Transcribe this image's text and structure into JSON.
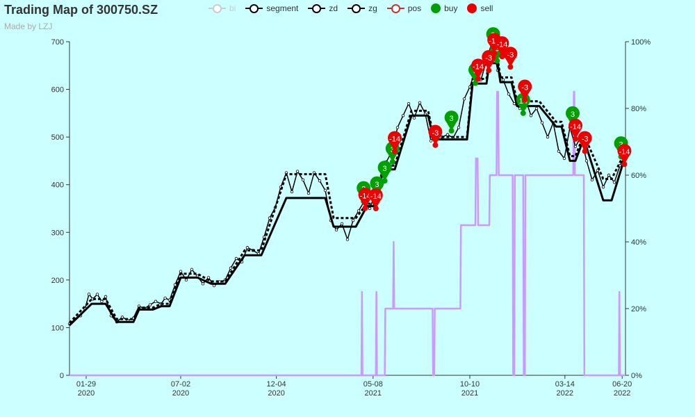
{
  "title": "Trading Map of 300750.SZ",
  "subtitle": "Made by LZJ",
  "legend": [
    {
      "label": "bi",
      "color": "#cccccc",
      "kind": "line",
      "disabled": true
    },
    {
      "label": "segment",
      "color": "#000000",
      "kind": "line",
      "disabled": false
    },
    {
      "label": "zd",
      "color": "#000000",
      "kind": "line",
      "disabled": false
    },
    {
      "label": "zg",
      "color": "#000000",
      "kind": "line",
      "disabled": false
    },
    {
      "label": "pos",
      "color": "#c23531",
      "kind": "line",
      "disabled": false
    },
    {
      "label": "buy",
      "color": "#00a000",
      "kind": "pin",
      "disabled": false
    },
    {
      "label": "sell",
      "color": "#ee0000",
      "kind": "pin",
      "disabled": false
    }
  ],
  "chart_data": {
    "type": "line",
    "title": "Trading Map of 300750.SZ",
    "subtitle": "Made by LZJ",
    "x_ticks": [
      {
        "t": 0.03,
        "label": "01-29",
        "year": "2020"
      },
      {
        "t": 0.2,
        "label": "07-02",
        "year": "2020"
      },
      {
        "t": 0.372,
        "label": "12-04",
        "year": "2020"
      },
      {
        "t": 0.546,
        "label": "05-08",
        "year": "2021"
      },
      {
        "t": 0.72,
        "label": "10-10",
        "year": "2021"
      },
      {
        "t": 0.891,
        "label": "03-14",
        "year": "2022"
      },
      {
        "t": 0.994,
        "label": "06-20",
        "year": "2022"
      }
    ],
    "y_left": {
      "min": 0,
      "max": 700,
      "ticks": [
        0,
        100,
        200,
        300,
        400,
        500,
        600,
        700
      ]
    },
    "y_right": {
      "min": 0,
      "max": 1,
      "ticks": [
        "0%",
        "20%",
        "40%",
        "60%",
        "80%",
        "100%"
      ]
    },
    "grid": false,
    "legend_position": "top",
    "series": [
      {
        "name": "segment",
        "color": "#000000",
        "width": 3,
        "dash": "",
        "points": [
          [
            0.0,
            105
          ],
          [
            0.04,
            150
          ],
          [
            0.065,
            150
          ],
          [
            0.085,
            112
          ],
          [
            0.115,
            112
          ],
          [
            0.125,
            138
          ],
          [
            0.15,
            138
          ],
          [
            0.165,
            145
          ],
          [
            0.18,
            145
          ],
          [
            0.2,
            205
          ],
          [
            0.23,
            205
          ],
          [
            0.255,
            192
          ],
          [
            0.28,
            192
          ],
          [
            0.315,
            252
          ],
          [
            0.345,
            252
          ],
          [
            0.39,
            372
          ],
          [
            0.46,
            372
          ],
          [
            0.475,
            312
          ],
          [
            0.515,
            312
          ],
          [
            0.535,
            355
          ],
          [
            0.548,
            355
          ],
          [
            0.565,
            432
          ],
          [
            0.585,
            432
          ],
          [
            0.615,
            545
          ],
          [
            0.645,
            545
          ],
          [
            0.655,
            495
          ],
          [
            0.715,
            495
          ],
          [
            0.725,
            612
          ],
          [
            0.75,
            612
          ],
          [
            0.755,
            655
          ],
          [
            0.77,
            655
          ],
          [
            0.775,
            615
          ],
          [
            0.795,
            615
          ],
          [
            0.805,
            565
          ],
          [
            0.845,
            565
          ],
          [
            0.875,
            522
          ],
          [
            0.885,
            522
          ],
          [
            0.9,
            450
          ],
          [
            0.91,
            450
          ],
          [
            0.925,
            497
          ],
          [
            0.96,
            367
          ],
          [
            0.975,
            367
          ],
          [
            1.0,
            462
          ]
        ]
      },
      {
        "name": "zd",
        "color": "#000000",
        "width": 3,
        "dash": "4,3",
        "points": [
          [
            0.0,
            110
          ],
          [
            0.04,
            160
          ],
          [
            0.065,
            160
          ],
          [
            0.085,
            118
          ],
          [
            0.115,
            118
          ],
          [
            0.125,
            142
          ],
          [
            0.15,
            142
          ],
          [
            0.165,
            150
          ],
          [
            0.18,
            150
          ],
          [
            0.2,
            213
          ],
          [
            0.23,
            213
          ],
          [
            0.255,
            197
          ],
          [
            0.28,
            197
          ],
          [
            0.315,
            262
          ],
          [
            0.345,
            262
          ],
          [
            0.39,
            422
          ],
          [
            0.46,
            422
          ],
          [
            0.475,
            330
          ],
          [
            0.515,
            330
          ],
          [
            0.535,
            360
          ],
          [
            0.548,
            360
          ],
          [
            0.565,
            440
          ],
          [
            0.585,
            440
          ],
          [
            0.615,
            555
          ],
          [
            0.645,
            555
          ],
          [
            0.655,
            500
          ],
          [
            0.715,
            500
          ],
          [
            0.725,
            622
          ],
          [
            0.75,
            622
          ],
          [
            0.755,
            665
          ],
          [
            0.77,
            665
          ],
          [
            0.775,
            625
          ],
          [
            0.795,
            625
          ],
          [
            0.805,
            575
          ],
          [
            0.845,
            575
          ],
          [
            0.875,
            532
          ],
          [
            0.885,
            532
          ],
          [
            0.9,
            460
          ],
          [
            0.91,
            460
          ],
          [
            0.925,
            505
          ],
          [
            0.96,
            412
          ],
          [
            0.975,
            412
          ],
          [
            1.0,
            470
          ]
        ]
      },
      {
        "name": "zg",
        "color": "#000000",
        "width": 1.5,
        "dash": "",
        "points": [
          [
            0.0,
            108
          ],
          [
            0.01,
            118
          ],
          [
            0.02,
            125
          ],
          [
            0.028,
            140
          ],
          [
            0.035,
            170
          ],
          [
            0.042,
            160
          ],
          [
            0.05,
            170
          ],
          [
            0.058,
            155
          ],
          [
            0.065,
            165
          ],
          [
            0.075,
            125
          ],
          [
            0.085,
            112
          ],
          [
            0.095,
            122
          ],
          [
            0.105,
            115
          ],
          [
            0.115,
            120
          ],
          [
            0.125,
            145
          ],
          [
            0.135,
            140
          ],
          [
            0.145,
            148
          ],
          [
            0.155,
            155
          ],
          [
            0.165,
            150
          ],
          [
            0.172,
            162
          ],
          [
            0.18,
            158
          ],
          [
            0.19,
            190
          ],
          [
            0.2,
            218
          ],
          [
            0.21,
            200
          ],
          [
            0.22,
            222
          ],
          [
            0.23,
            208
          ],
          [
            0.24,
            192
          ],
          [
            0.25,
            205
          ],
          [
            0.26,
            188
          ],
          [
            0.27,
            196
          ],
          [
            0.28,
            200
          ],
          [
            0.29,
            225
          ],
          [
            0.3,
            245
          ],
          [
            0.31,
            238
          ],
          [
            0.32,
            268
          ],
          [
            0.33,
            262
          ],
          [
            0.34,
            255
          ],
          [
            0.35,
            290
          ],
          [
            0.36,
            330
          ],
          [
            0.37,
            352
          ],
          [
            0.38,
            395
          ],
          [
            0.39,
            425
          ],
          [
            0.4,
            385
          ],
          [
            0.41,
            428
          ],
          [
            0.42,
            410
          ],
          [
            0.43,
            382
          ],
          [
            0.44,
            425
          ],
          [
            0.45,
            408
          ],
          [
            0.46,
            388
          ],
          [
            0.47,
            325
          ],
          [
            0.48,
            305
          ],
          [
            0.49,
            318
          ],
          [
            0.5,
            285
          ],
          [
            0.51,
            325
          ],
          [
            0.52,
            345
          ],
          [
            0.53,
            365
          ],
          [
            0.54,
            350
          ],
          [
            0.55,
            382
          ],
          [
            0.56,
            412
          ],
          [
            0.57,
            448
          ],
          [
            0.58,
            470
          ],
          [
            0.59,
            520
          ],
          [
            0.6,
            545
          ],
          [
            0.61,
            570
          ],
          [
            0.62,
            540
          ],
          [
            0.63,
            572
          ],
          [
            0.64,
            548
          ],
          [
            0.65,
            492
          ],
          [
            0.66,
            510
          ],
          [
            0.67,
            500
          ],
          [
            0.68,
            505
          ],
          [
            0.69,
            498
          ],
          [
            0.7,
            520
          ],
          [
            0.71,
            580
          ],
          [
            0.72,
            605
          ],
          [
            0.73,
            640
          ],
          [
            0.74,
            620
          ],
          [
            0.75,
            660
          ],
          [
            0.76,
            700
          ],
          [
            0.77,
            640
          ],
          [
            0.78,
            620
          ],
          [
            0.79,
            590
          ],
          [
            0.8,
            570
          ],
          [
            0.81,
            560
          ],
          [
            0.82,
            580
          ],
          [
            0.83,
            545
          ],
          [
            0.84,
            560
          ],
          [
            0.85,
            530
          ],
          [
            0.86,
            500
          ],
          [
            0.87,
            530
          ],
          [
            0.88,
            470
          ],
          [
            0.89,
            455
          ],
          [
            0.9,
            520
          ],
          [
            0.91,
            480
          ],
          [
            0.92,
            500
          ],
          [
            0.93,
            450
          ],
          [
            0.94,
            410
          ],
          [
            0.95,
            430
          ],
          [
            0.96,
            395
          ],
          [
            0.97,
            420
          ],
          [
            0.98,
            405
          ],
          [
            0.99,
            440
          ],
          [
            1.0,
            462
          ]
        ]
      },
      {
        "name": "pos",
        "color": "#cc99ff",
        "width": 2.5,
        "dash": "",
        "axis": "right",
        "points": [
          [
            0.0,
            0
          ],
          [
            0.525,
            0
          ],
          [
            0.526,
            0.25
          ],
          [
            0.527,
            0
          ],
          [
            0.551,
            0
          ],
          [
            0.552,
            0.25
          ],
          [
            0.553,
            0
          ],
          [
            0.567,
            0
          ],
          [
            0.568,
            0.2
          ],
          [
            0.582,
            0.2
          ],
          [
            0.583,
            0.4
          ],
          [
            0.584,
            0.2
          ],
          [
            0.653,
            0.2
          ],
          [
            0.654,
            0
          ],
          [
            0.656,
            0
          ],
          [
            0.657,
            0.2
          ],
          [
            0.703,
            0.2
          ],
          [
            0.704,
            0.45
          ],
          [
            0.73,
            0.45
          ],
          [
            0.731,
            0.65
          ],
          [
            0.734,
            0.65
          ],
          [
            0.735,
            0.45
          ],
          [
            0.755,
            0.45
          ],
          [
            0.756,
            0.6
          ],
          [
            0.768,
            0.6
          ],
          [
            0.769,
            0.85
          ],
          [
            0.771,
            0.85
          ],
          [
            0.772,
            0.6
          ],
          [
            0.797,
            0.6
          ],
          [
            0.798,
            0
          ],
          [
            0.8,
            0
          ],
          [
            0.801,
            0.6
          ],
          [
            0.816,
            0.6
          ],
          [
            0.817,
            0
          ],
          [
            0.819,
            0
          ],
          [
            0.82,
            0.6
          ],
          [
            0.906,
            0.6
          ],
          [
            0.907,
            0.85
          ],
          [
            0.908,
            0.85
          ],
          [
            0.909,
            0.6
          ],
          [
            0.925,
            0.6
          ],
          [
            0.926,
            0
          ],
          [
            0.988,
            0
          ],
          [
            0.989,
            0.25
          ],
          [
            0.99,
            0
          ],
          [
            1.0,
            0
          ]
        ]
      }
    ],
    "buy_signals": [
      {
        "t": 0.529,
        "price": 365,
        "label": "3"
      },
      {
        "t": 0.553,
        "price": 375,
        "label": "3"
      },
      {
        "t": 0.567,
        "price": 408,
        "label": "3"
      },
      {
        "t": 0.581,
        "price": 448,
        "label": "3"
      },
      {
        "t": 0.687,
        "price": 513,
        "label": "3"
      },
      {
        "t": 0.73,
        "price": 613,
        "label": "3"
      },
      {
        "t": 0.762,
        "price": 688,
        "label": "3"
      },
      {
        "t": 0.769,
        "price": 660,
        "label": "3"
      },
      {
        "t": 0.816,
        "price": 550,
        "label": "14"
      },
      {
        "t": 0.905,
        "price": 522,
        "label": "3"
      },
      {
        "t": 0.992,
        "price": 459,
        "label": "3"
      }
    ],
    "sell_signals": [
      {
        "t": 0.532,
        "price": 351,
        "label": "-14"
      },
      {
        "t": 0.551,
        "price": 350,
        "label": "-14"
      },
      {
        "t": 0.585,
        "price": 470,
        "label": "-14"
      },
      {
        "t": 0.658,
        "price": 483,
        "label": "-3"
      },
      {
        "t": 0.735,
        "price": 622,
        "label": "-14"
      },
      {
        "t": 0.754,
        "price": 640,
        "label": "-3"
      },
      {
        "t": 0.764,
        "price": 676,
        "label": "-14"
      },
      {
        "t": 0.778,
        "price": 669,
        "label": "-14"
      },
      {
        "t": 0.793,
        "price": 647,
        "label": "-3"
      },
      {
        "t": 0.819,
        "price": 578,
        "label": "-3"
      },
      {
        "t": 0.91,
        "price": 496,
        "label": "-14"
      },
      {
        "t": 0.927,
        "price": 470,
        "label": "-3"
      },
      {
        "t": 0.998,
        "price": 443,
        "label": "-14"
      }
    ]
  }
}
